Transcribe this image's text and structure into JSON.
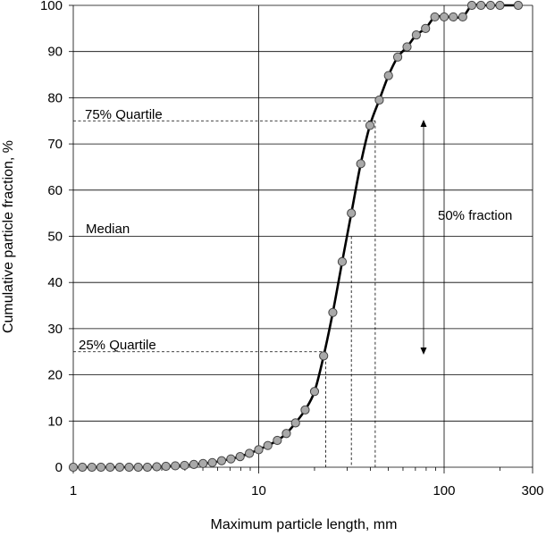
{
  "chart_data": {
    "type": "scatter",
    "x_scale": "log",
    "xlim": [
      1,
      300
    ],
    "ylim": [
      0,
      100
    ],
    "xlabel": "Maximum particle length, mm",
    "ylabel": "Cumulative particle fraction, %",
    "x_ticks": [
      1,
      10,
      100,
      300
    ],
    "y_ticks": [
      0,
      10,
      20,
      30,
      40,
      50,
      60,
      70,
      80,
      90,
      100
    ],
    "grid": true,
    "series": [
      {
        "x": [
          1.0,
          1.12,
          1.26,
          1.41,
          1.58,
          1.78,
          2.0,
          2.24,
          2.51,
          2.82,
          3.16,
          3.55,
          3.98,
          4.47,
          5.01,
          5.62,
          6.31,
          7.08,
          7.94,
          8.91,
          10.0,
          11.2,
          12.6,
          14.1,
          15.8,
          17.8,
          20.0,
          22.4,
          25.1,
          28.2,
          31.6,
          35.5,
          39.8,
          44.7,
          50.1,
          56.2,
          63.1,
          70.8,
          79.4,
          89.1,
          100.0,
          112.0,
          126.0,
          141.0,
          158.0,
          178.0,
          200.0,
          251.0
        ],
        "y": [
          0,
          0,
          0,
          0,
          0,
          0,
          0,
          0,
          0,
          0.1,
          0.2,
          0.3,
          0.4,
          0.6,
          0.8,
          1.0,
          1.4,
          1.8,
          2.3,
          3.0,
          3.8,
          4.7,
          5.8,
          7.3,
          9.6,
          12.4,
          16.4,
          24.1,
          33.5,
          44.5,
          55.0,
          65.7,
          74.0,
          79.5,
          84.8,
          88.8,
          91.0,
          93.6,
          95.0,
          97.5,
          97.5,
          97.5,
          97.5,
          100,
          100,
          100,
          100,
          100
        ]
      }
    ],
    "reference_lines": [
      {
        "label": "75% Quartile",
        "y": 75,
        "x": 42.5
      },
      {
        "label": "Median",
        "y": 50,
        "x": 31.6
      },
      {
        "label": "25% Quartile",
        "y": 25,
        "x": 23.0
      }
    ],
    "annotations": [
      {
        "text": "50% fraction"
      }
    ],
    "colors": {
      "marker_fill": "#a9a9a9",
      "marker_stroke": "#444444",
      "curve": "#000000",
      "grid": "#000000"
    }
  }
}
